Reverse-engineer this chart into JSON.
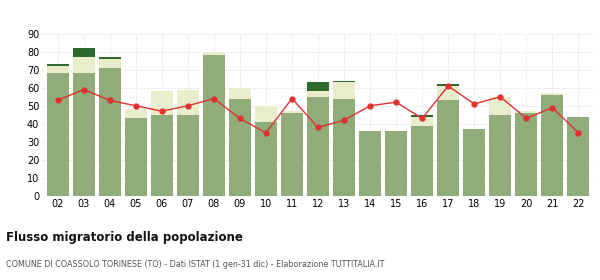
{
  "years": [
    "02",
    "03",
    "04",
    "05",
    "06",
    "07",
    "08",
    "09",
    "10",
    "11",
    "12",
    "13",
    "14",
    "15",
    "16",
    "17",
    "18",
    "19",
    "20",
    "21",
    "22"
  ],
  "iscritti_comuni": [
    68,
    68,
    71,
    43,
    45,
    45,
    78,
    54,
    41,
    46,
    55,
    54,
    36,
    36,
    39,
    53,
    37,
    45,
    46,
    56,
    44
  ],
  "iscritti_estero": [
    4,
    9,
    5,
    5,
    13,
    14,
    2,
    6,
    9,
    1,
    3,
    9,
    0,
    0,
    5,
    8,
    0,
    10,
    1,
    1,
    0
  ],
  "iscritti_altri": [
    1,
    5,
    1,
    0,
    0,
    0,
    0,
    0,
    0,
    0,
    5,
    1,
    0,
    0,
    1,
    1,
    0,
    0,
    0,
    0,
    0
  ],
  "cancellati": [
    53,
    59,
    53,
    50,
    47,
    50,
    54,
    43,
    35,
    54,
    38,
    42,
    50,
    52,
    43,
    61,
    51,
    55,
    43,
    49,
    35
  ],
  "color_comuni": "#8fac7a",
  "color_estero": "#eaedcc",
  "color_altri": "#2d6a2d",
  "color_cancellati": "#e03030",
  "bg_color": "#ffffff",
  "grid_color": "#d4d4d4",
  "title": "Flusso migratorio della popolazione",
  "subtitle": "COMUNE DI COASSOLO TORINESE (TO) - Dati ISTAT (1 gen-31 dic) - Elaborazione TUTTITALIA.IT",
  "ylim": [
    0,
    90
  ],
  "yticks": [
    0,
    10,
    20,
    30,
    40,
    50,
    60,
    70,
    80,
    90
  ]
}
